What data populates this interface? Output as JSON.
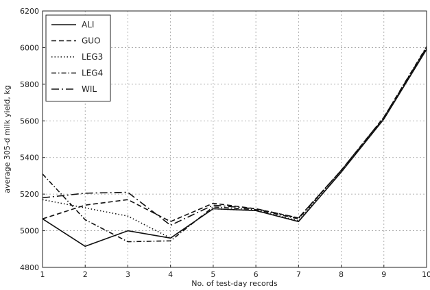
{
  "chart_data": {
    "type": "line",
    "title": "",
    "xlabel": "No. of test-day records",
    "ylabel": "average 305-d milk yield, kg",
    "x": [
      1,
      2,
      3,
      4,
      5,
      6,
      7,
      8,
      9,
      10
    ],
    "xlim": [
      1,
      10
    ],
    "ylim": [
      4800,
      6200
    ],
    "xticks": [
      1,
      2,
      3,
      4,
      5,
      6,
      7,
      8,
      9,
      10
    ],
    "yticks": [
      4800,
      5000,
      5200,
      5400,
      5600,
      5800,
      6000,
      6200
    ],
    "grid": true,
    "legend_position": "top-left",
    "series": [
      {
        "name": "ALI",
        "dash": "solid",
        "values": [
          5065,
          4915,
          5000,
          4960,
          5120,
          5110,
          5050,
          5320,
          5610,
          5990
        ]
      },
      {
        "name": "GUO",
        "dash": "dashed",
        "values": [
          5065,
          5140,
          5170,
          5050,
          5150,
          5120,
          5070,
          5330,
          5620,
          6000
        ]
      },
      {
        "name": "LEG3",
        "dash": "dotted",
        "values": [
          5170,
          5125,
          5080,
          4960,
          5120,
          5110,
          5055,
          5325,
          5615,
          5995
        ]
      },
      {
        "name": "LEG4",
        "dash": "dashdot",
        "values": [
          5310,
          5060,
          4940,
          4945,
          5130,
          5115,
          5065,
          5330,
          5620,
          6005
        ]
      },
      {
        "name": "WIL",
        "dash": "longdash",
        "values": [
          5180,
          5205,
          5210,
          5030,
          5140,
          5120,
          5070,
          5330,
          5615,
          6000
        ]
      }
    ],
    "line_color": "#111111",
    "grid_color": "#9a9a9a"
  }
}
